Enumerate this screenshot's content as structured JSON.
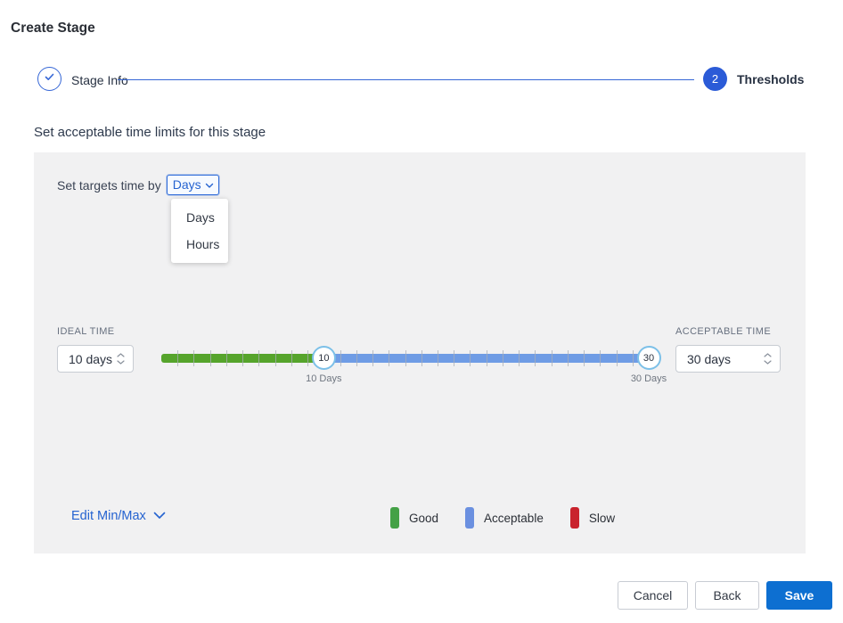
{
  "window": {
    "title": "Create Stage"
  },
  "stepper": {
    "steps": [
      {
        "label": "Stage Info",
        "state": "completed",
        "icon": "check"
      },
      {
        "label": "Thresholds",
        "number": "2",
        "state": "active"
      }
    ]
  },
  "content": {
    "heading": "Set acceptable time limits for this stage"
  },
  "targets": {
    "label": "Set targets time by",
    "selected": "Days",
    "options": [
      "Days",
      "Hours"
    ]
  },
  "ideal_time": {
    "label": "IDEAL TIME",
    "value": "10 days"
  },
  "acceptable_time": {
    "label": "ACCEPTABLE TIME",
    "value": "30 days"
  },
  "slider": {
    "min": 0,
    "max": 30,
    "ideal_value": 10,
    "acceptable_value": 30,
    "handle_labels": [
      "10",
      "30"
    ],
    "axis_labels": [
      "10 Days",
      "30 Days"
    ],
    "good_color": "#56a42c",
    "acceptable_color": "#6f9ce5"
  },
  "edit_minmax": {
    "label": "Edit Min/Max"
  },
  "legend": {
    "items": [
      {
        "label": "Good",
        "color": "#44a146"
      },
      {
        "label": "Acceptable",
        "color": "#6b90e0"
      },
      {
        "label": "Slow",
        "color": "#c9232d"
      }
    ]
  },
  "footer": {
    "cancel_label": "Cancel",
    "back_label": "Back",
    "save_label": "Save"
  }
}
